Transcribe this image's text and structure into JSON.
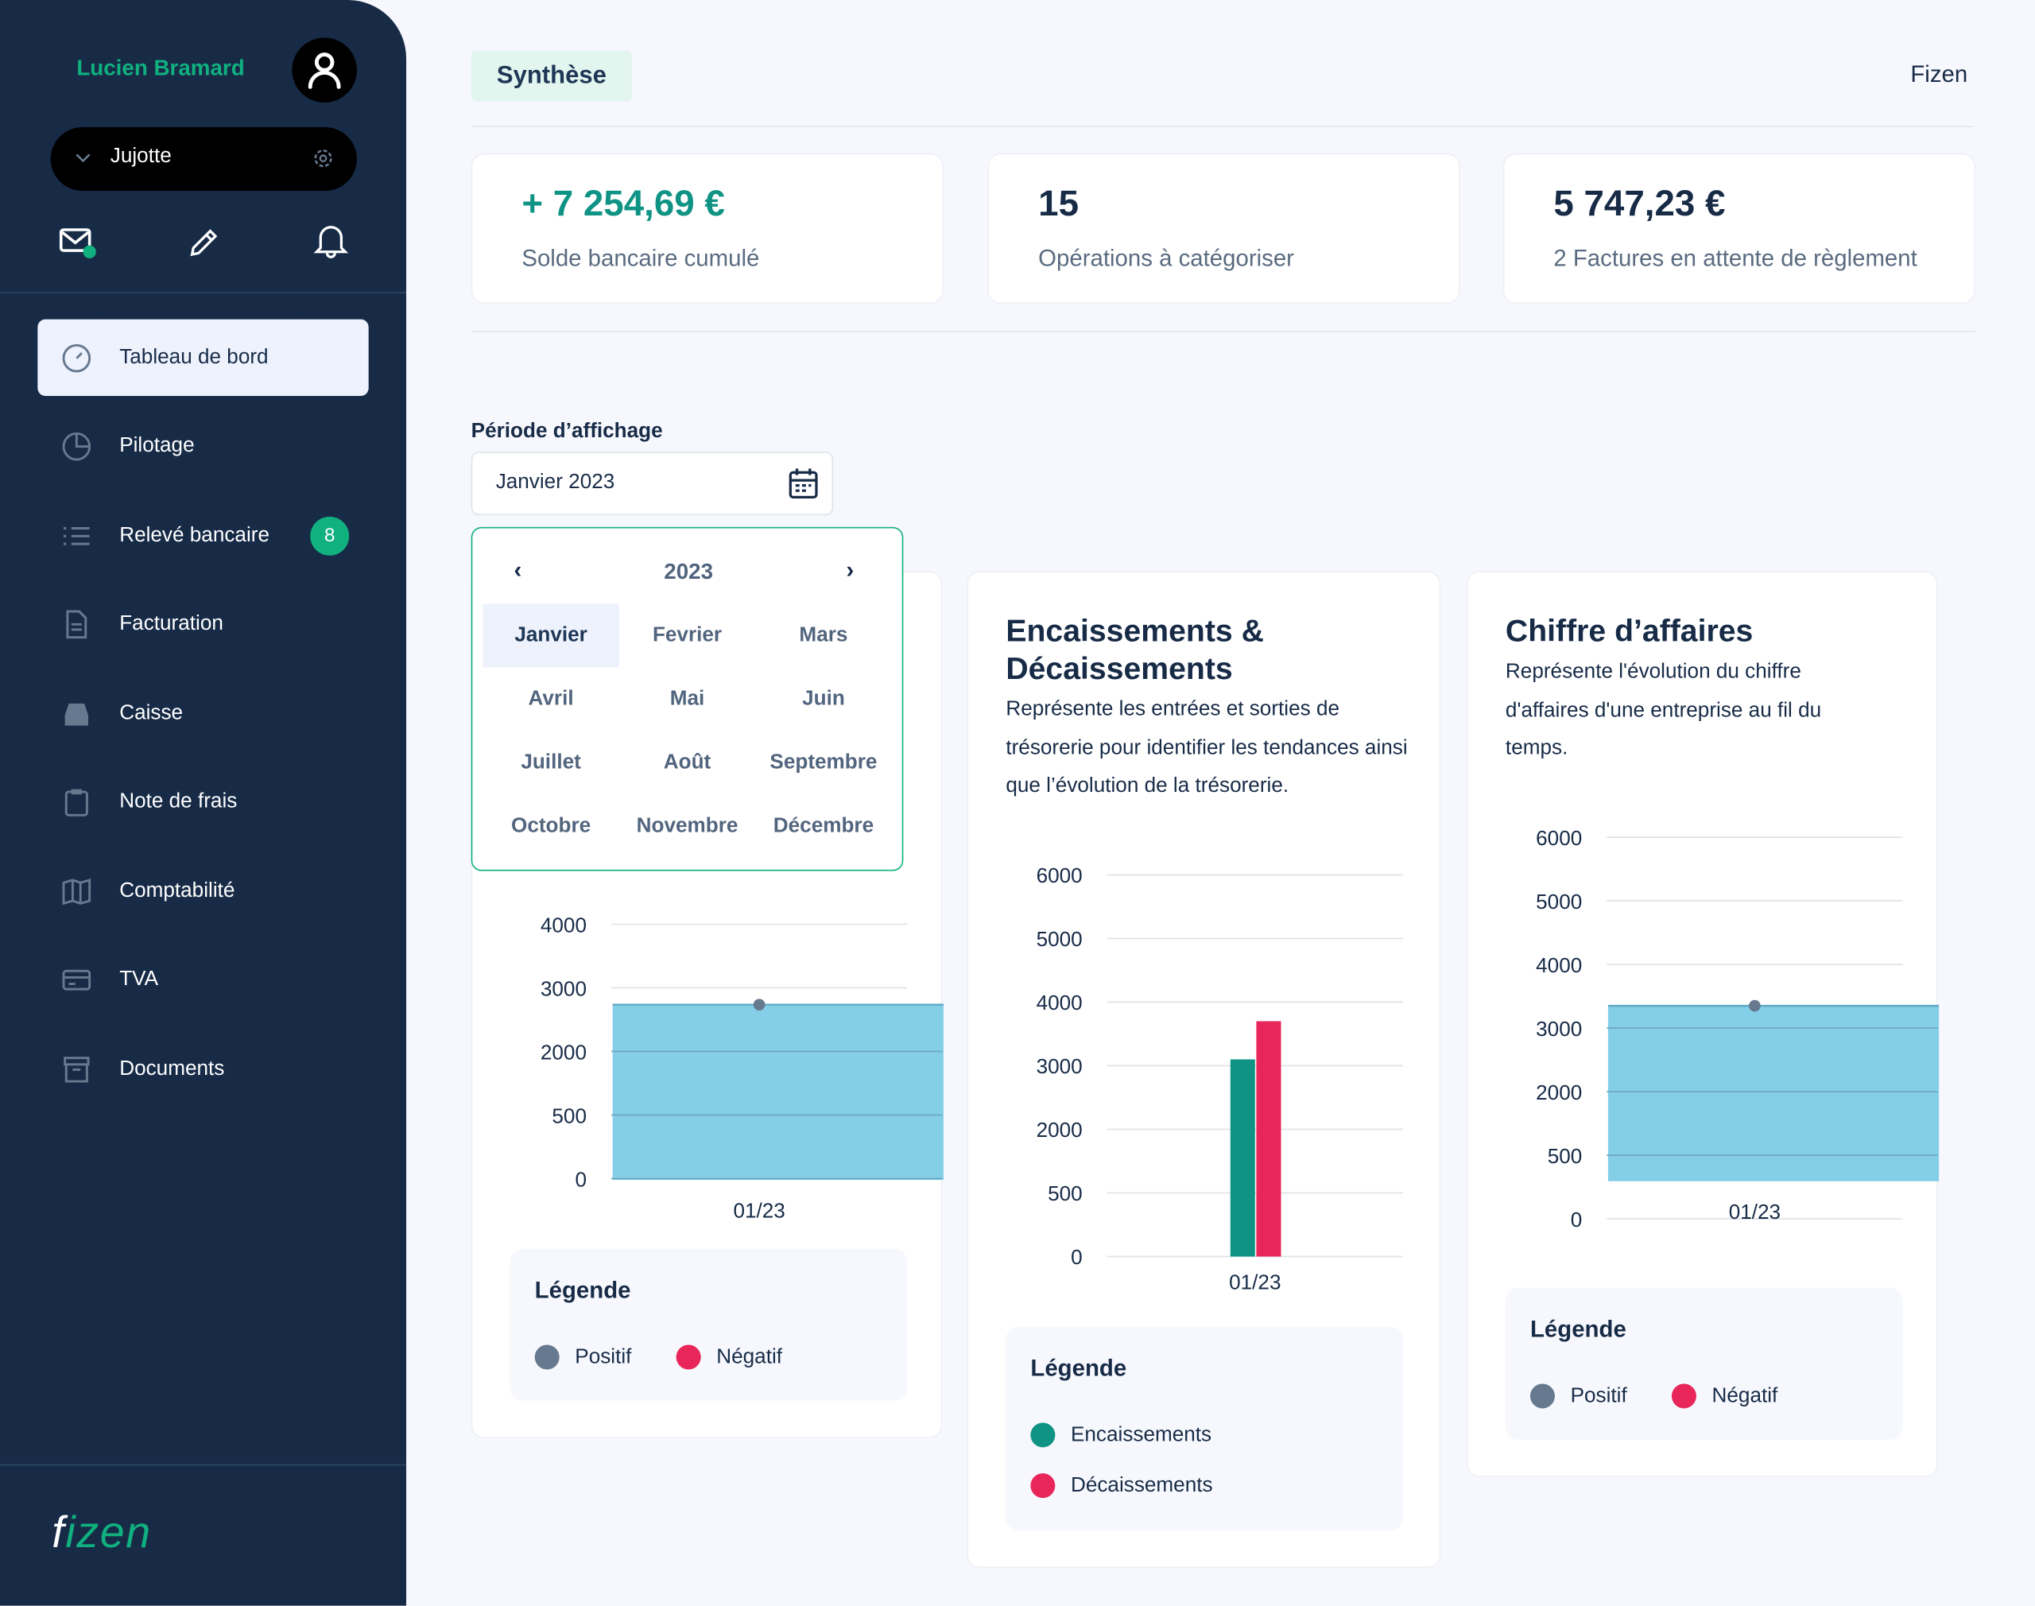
{
  "sidebar": {
    "user_name": "Lucien Bramard",
    "organization": "Jujotte",
    "logo_text": "fizen",
    "items": [
      {
        "label": "Tableau de bord",
        "icon": "dashboard-icon",
        "active": true
      },
      {
        "label": "Pilotage",
        "icon": "pie-icon"
      },
      {
        "label": "Relevé bancaire",
        "icon": "list-icon",
        "badge": "8"
      },
      {
        "label": "Facturation",
        "icon": "file-icon"
      },
      {
        "label": "Caisse",
        "icon": "inbox-icon"
      },
      {
        "label": "Note de frais",
        "icon": "clipboard-icon"
      },
      {
        "label": "Comptabilité",
        "icon": "book-icon"
      },
      {
        "label": "TVA",
        "icon": "card-icon"
      },
      {
        "label": "Documents",
        "icon": "archive-icon"
      }
    ]
  },
  "header": {
    "tab": "Synthèse",
    "brand": "Fizen"
  },
  "kpis": [
    {
      "value": "+ 7 254,69 €",
      "label": "Solde bancaire cumulé"
    },
    {
      "value": "15",
      "label": "Opérations à catégoriser"
    },
    {
      "value": "5 747,23 €",
      "label": "2  Factures en attente de règlement"
    }
  ],
  "period": {
    "label": "Période d’affichage",
    "value": "Janvier 2023",
    "year": "2023",
    "months": [
      "Janvier",
      "Fevrier",
      "Mars",
      "Avril",
      "Mai",
      "Juin",
      "Juillet",
      "Août",
      "Septembre",
      "Octobre",
      "Novembre",
      "Décembre"
    ],
    "selected": "Janvier"
  },
  "cards": {
    "left": {
      "legend_title": "Légende",
      "legend": [
        "Positif",
        "Négatif"
      ]
    },
    "middle": {
      "title": "Encaissements & Décaissements",
      "description": "Représente les entrées et sorties de trésorerie pour identifier les tendances ainsi que l’évolution de la trésorerie.",
      "legend_title": "Légende",
      "legend": [
        "Encaissements",
        "Décaissements"
      ]
    },
    "right": {
      "title": "Chiffre d’affaires",
      "description": "Représente l'évolution du chiffre d'affaires d'une entreprise au fil du temps.",
      "legend_title": "Légende",
      "legend": [
        "Positif",
        "Négatif"
      ]
    }
  },
  "colors": {
    "positive": "#67798f",
    "negative": "#e8265a",
    "encaissements": "#0f9384",
    "decaissements": "#e8265a",
    "area": "#7ecbe6",
    "accent": "#10b07f"
  },
  "chart_data": [
    {
      "type": "area",
      "title": "",
      "categories": [
        "01/23"
      ],
      "yticks": [
        "0",
        "500",
        "2000",
        "3000",
        "4000"
      ],
      "series": [
        {
          "name": "Positif",
          "values": [
            2735
          ]
        }
      ]
    },
    {
      "type": "bar",
      "title": "Encaissements & Décaissements",
      "categories": [
        "01/23"
      ],
      "yticks": [
        "0",
        "500",
        "2000",
        "3000",
        "4000",
        "5000",
        "6000"
      ],
      "series": [
        {
          "name": "Encaissements",
          "values": [
            3100
          ]
        },
        {
          "name": "Décaissements",
          "values": [
            3700
          ]
        }
      ]
    },
    {
      "type": "area",
      "title": "Chiffre d’affaires",
      "categories": [
        "01/23"
      ],
      "yticks": [
        "0",
        "500",
        "2000",
        "3000",
        "4000",
        "5000",
        "6000"
      ],
      "series": [
        {
          "name": "Positif",
          "values": [
            3350
          ]
        }
      ]
    }
  ]
}
